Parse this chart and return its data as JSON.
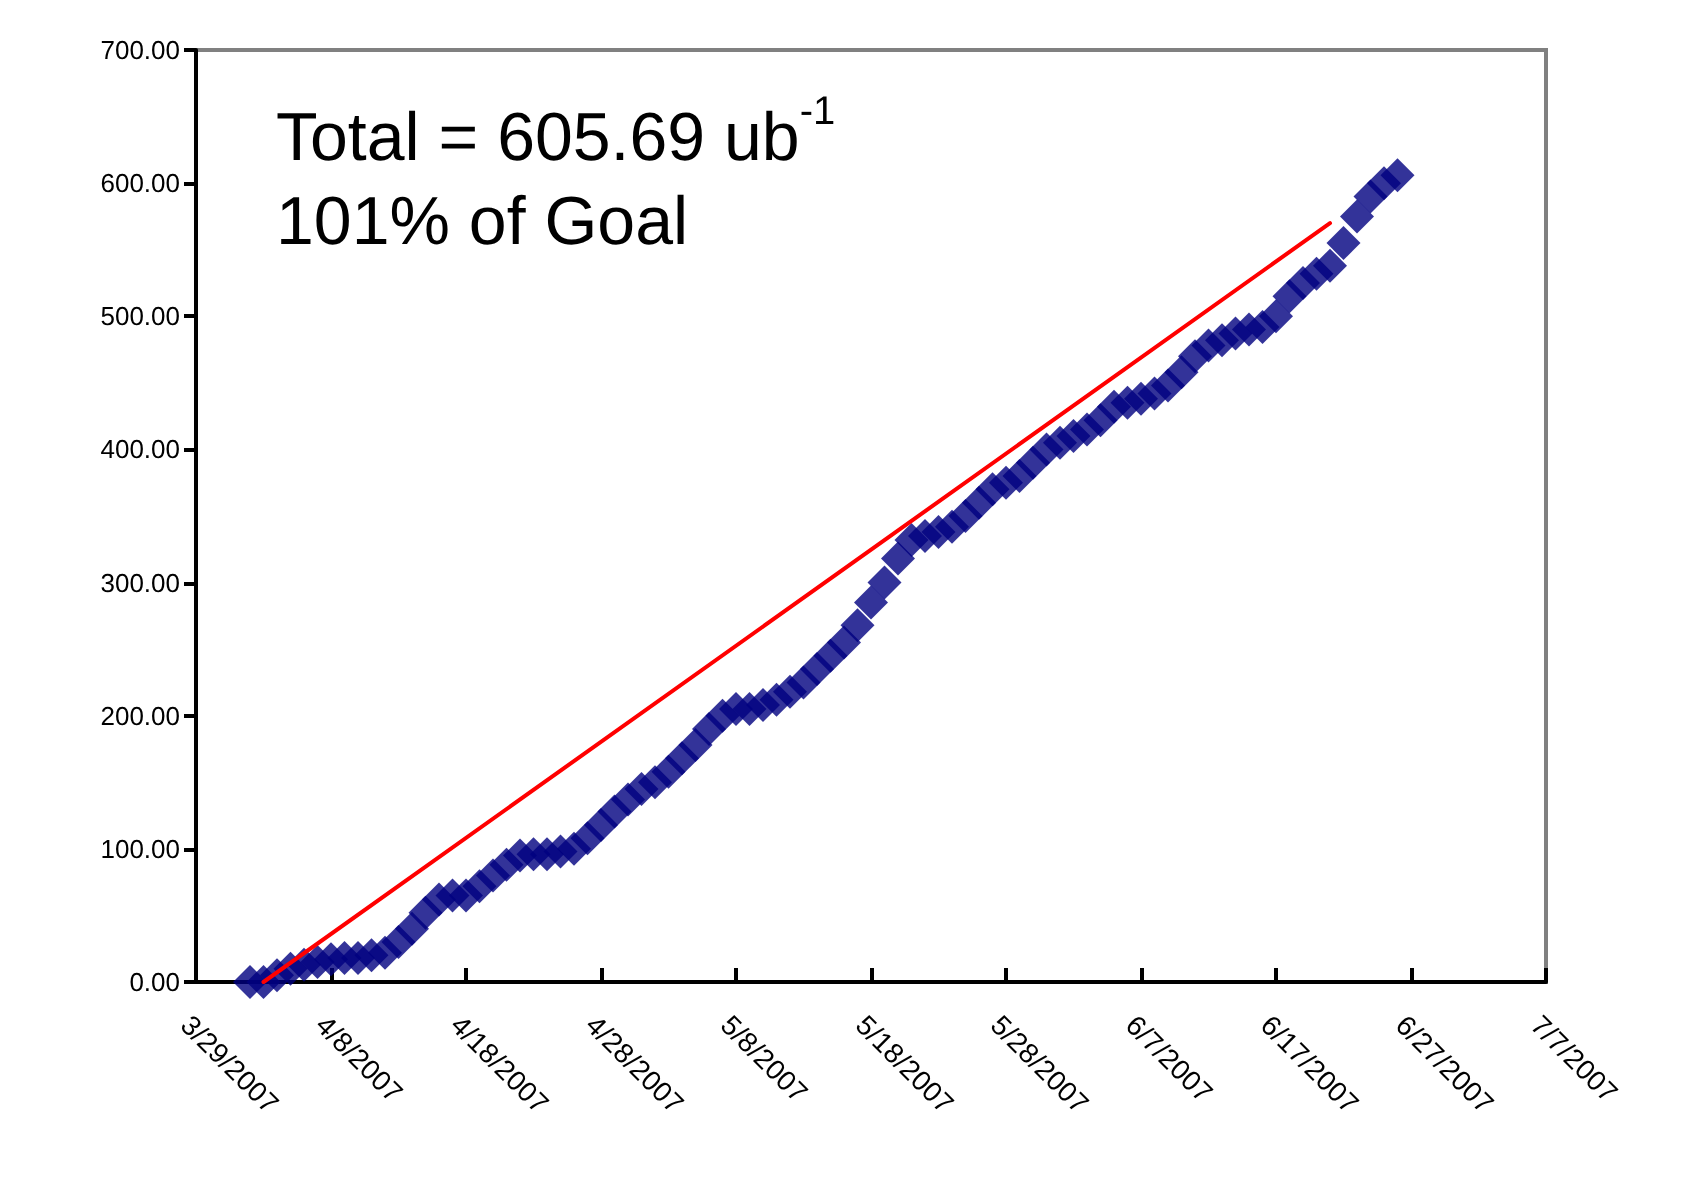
{
  "chart_data": {
    "type": "line",
    "annotations": [
      "Total = 605.69 ub$^{-1}$",
      "101% of Goal"
    ],
    "xlim": [
      "2007-03-29",
      "2007-07-07"
    ],
    "xticks": [
      {
        "value": "2007-03-29",
        "label": "3/29/2007"
      },
      {
        "value": "2007-04-08",
        "label": "4/8/2007"
      },
      {
        "value": "2007-04-18",
        "label": "4/18/2007"
      },
      {
        "value": "2007-04-28",
        "label": "4/28/2007"
      },
      {
        "value": "2007-05-08",
        "label": "5/8/2007"
      },
      {
        "value": "2007-05-18",
        "label": "5/18/2007"
      },
      {
        "value": "2007-05-28",
        "label": "5/28/2007"
      },
      {
        "value": "2007-06-07",
        "label": "6/7/2007"
      },
      {
        "value": "2007-06-17",
        "label": "6/17/2007"
      },
      {
        "value": "2007-06-27",
        "label": "6/27/2007"
      },
      {
        "value": "2007-07-07",
        "label": "7/7/2007"
      }
    ],
    "ylim": [
      0,
      700
    ],
    "yticks": [
      {
        "value": 0,
        "label": "0.00"
      },
      {
        "value": 100,
        "label": "100.00"
      },
      {
        "value": 200,
        "label": "200.00"
      },
      {
        "value": 300,
        "label": "300.00"
      },
      {
        "value": 400,
        "label": "400.00"
      },
      {
        "value": 500,
        "label": "500.00"
      },
      {
        "value": 600,
        "label": "600.00"
      },
      {
        "value": 700,
        "label": "700.00"
      }
    ],
    "series": [
      {
        "color": "#ff0000",
        "x": [
          "2007-04-03",
          "2007-06-21"
        ],
        "values": [
          0,
          570
        ]
      },
      {
        "type": "scatter",
        "color": "#000080",
        "marker": "diamond",
        "x": [
          "2007-04-02",
          "2007-04-03",
          "2007-04-04",
          "2007-04-05",
          "2007-04-06",
          "2007-04-07",
          "2007-04-08",
          "2007-04-09",
          "2007-04-10",
          "2007-04-11",
          "2007-04-12",
          "2007-04-13",
          "2007-04-14",
          "2007-04-15",
          "2007-04-16",
          "2007-04-17",
          "2007-04-18",
          "2007-04-19",
          "2007-04-20",
          "2007-04-21",
          "2007-04-22",
          "2007-04-23",
          "2007-04-24",
          "2007-04-25",
          "2007-04-26",
          "2007-04-27",
          "2007-04-28",
          "2007-04-29",
          "2007-04-30",
          "2007-05-01",
          "2007-05-02",
          "2007-05-03",
          "2007-05-04",
          "2007-05-05",
          "2007-05-06",
          "2007-05-07",
          "2007-05-08",
          "2007-05-09",
          "2007-05-10",
          "2007-05-11",
          "2007-05-12",
          "2007-05-13",
          "2007-05-14",
          "2007-05-15",
          "2007-05-16",
          "2007-05-17",
          "2007-05-18",
          "2007-05-19",
          "2007-05-20",
          "2007-05-21",
          "2007-05-22",
          "2007-05-23",
          "2007-05-24",
          "2007-05-25",
          "2007-05-26",
          "2007-05-27",
          "2007-05-28",
          "2007-05-29",
          "2007-05-30",
          "2007-05-31",
          "2007-06-01",
          "2007-06-02",
          "2007-06-03",
          "2007-06-04",
          "2007-06-05",
          "2007-06-06",
          "2007-06-07",
          "2007-06-08",
          "2007-06-09",
          "2007-06-10",
          "2007-06-11",
          "2007-06-12",
          "2007-06-13",
          "2007-06-14",
          "2007-06-15",
          "2007-06-16",
          "2007-06-17",
          "2007-06-18",
          "2007-06-19",
          "2007-06-20",
          "2007-06-21",
          "2007-06-22",
          "2007-06-23",
          "2007-06-24",
          "2007-06-25",
          "2007-06-26"
        ],
        "values": [
          0,
          0,
          5,
          10,
          13,
          15,
          17,
          18,
          18,
          20,
          22,
          30,
          40,
          52,
          62,
          65,
          65,
          72,
          80,
          88,
          95,
          96,
          96,
          98,
          100,
          108,
          118,
          128,
          137,
          145,
          150,
          158,
          168,
          178,
          190,
          200,
          205,
          205,
          208,
          212,
          218,
          225,
          235,
          245,
          255,
          268,
          285,
          300,
          318,
          332,
          335,
          338,
          342,
          350,
          360,
          370,
          375,
          380,
          390,
          400,
          405,
          410,
          415,
          422,
          432,
          435,
          438,
          442,
          448,
          458,
          470,
          478,
          482,
          487,
          490,
          492,
          500,
          515,
          525,
          532,
          538,
          555,
          575,
          590,
          600,
          606
        ]
      }
    ]
  }
}
